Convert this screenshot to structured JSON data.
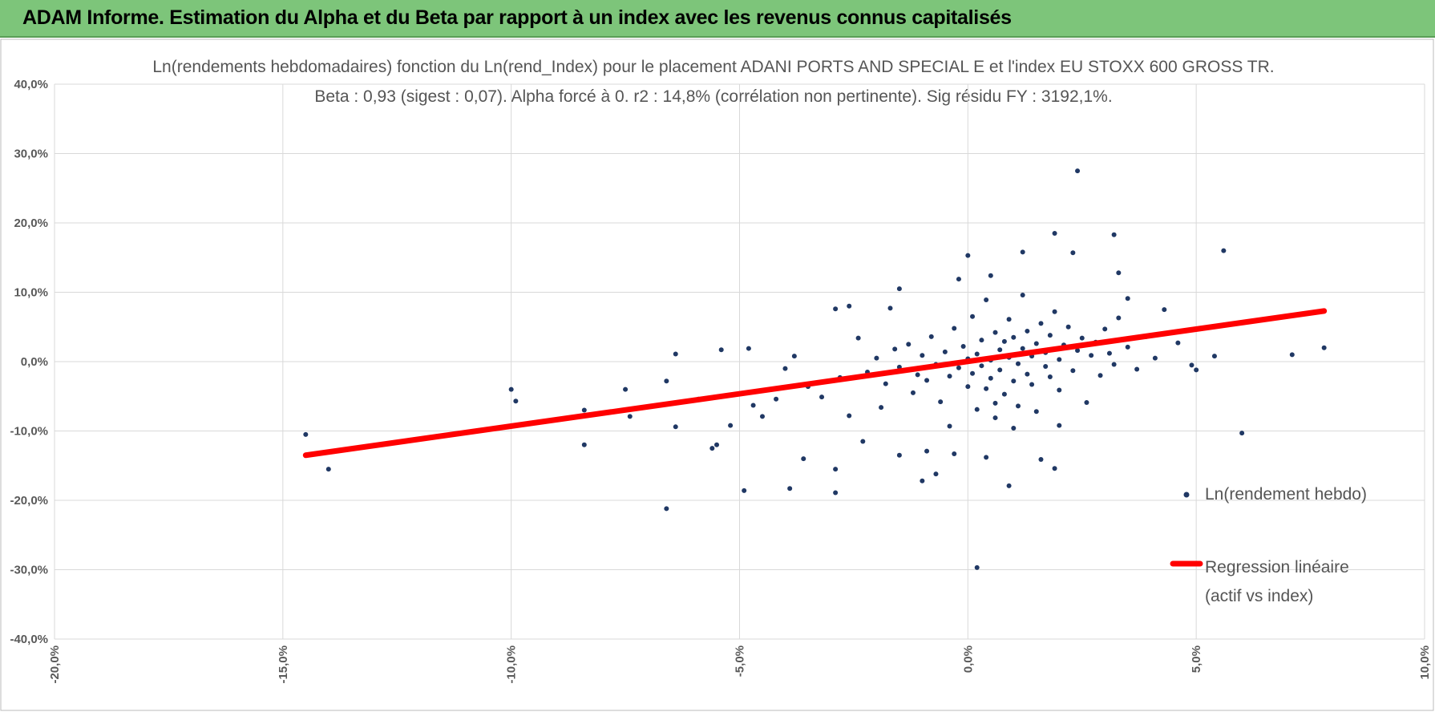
{
  "header": {
    "title": "ADAM Informe. Estimation du Alpha et du Beta par rapport à un index avec les revenus connus capitalisés"
  },
  "chart_data": {
    "type": "scatter",
    "title": "Ln(rendements hebdomadaires) fonction du Ln(rend_Index) pour le placement ADANI PORTS AND SPECIAL E et l'index EU STOXX 600 GROSS TR.",
    "subtitle": "Beta : 0,93 (sigest : 0,07).  Alpha forcé à 0. r2 : 14,8% (corrélation non pertinente). Sig résidu FY : 3192,1%.",
    "xlim": [
      -20,
      10
    ],
    "xticks": [
      {
        "value": -20,
        "label": "-20,0%"
      },
      {
        "value": -15,
        "label": "-15,0%"
      },
      {
        "value": -10,
        "label": "-10,0%"
      },
      {
        "value": -5,
        "label": "-5,0%"
      },
      {
        "value": 0,
        "label": "0,0%"
      },
      {
        "value": 5,
        "label": "5,0%"
      },
      {
        "value": 10,
        "label": "10,0%"
      }
    ],
    "ylim": [
      -40,
      40
    ],
    "yticks": [
      {
        "value": -40,
        "label": "-40,0%"
      },
      {
        "value": -30,
        "label": "-30,0%"
      },
      {
        "value": -20,
        "label": "-20,0%"
      },
      {
        "value": -10,
        "label": "-10,0%"
      },
      {
        "value": 0,
        "label": "0,0%"
      },
      {
        "value": 10,
        "label": "10,0%"
      },
      {
        "value": 20,
        "label": "20,0%"
      },
      {
        "value": 30,
        "label": "30,0%"
      },
      {
        "value": 40,
        "label": "40,0%"
      }
    ],
    "grid": true,
    "series": [
      {
        "name": "Ln(rendement hebdo)",
        "color": "#203864",
        "type": "scatter",
        "x": [
          -14.5,
          -14,
          -10,
          -9.9,
          -8.4,
          -8.4,
          -7.5,
          -7.4,
          -6.6,
          -6.4,
          -6.4,
          -6.6,
          -5.9,
          -5.6,
          -5.5,
          -5.4,
          -5.2,
          -4.9,
          -4.8,
          -4.7,
          -4.5,
          -3.9,
          -3.6,
          -2.9,
          -2.9,
          -2.9,
          -2.6,
          -2.3,
          -1.7,
          -1.5,
          -1.5,
          -1,
          -0.9,
          -0.7,
          -0.3,
          0,
          0.2,
          0.4,
          0.9,
          1.2,
          1.6,
          1.9,
          1.9,
          2.3,
          2.4,
          3.2,
          3.3,
          4.9,
          5,
          5.6,
          5.4,
          6,
          7.1,
          7.8,
          4.3,
          3.5,
          -2.2,
          -2,
          -1.8,
          -1.6,
          -1.5,
          -1.3,
          -1.2,
          -1.1,
          -1,
          -0.9,
          -0.8,
          -0.7,
          -0.6,
          -0.5,
          -0.4,
          -0.3,
          -0.2,
          -0.1,
          0,
          0,
          0.1,
          0.1,
          0.2,
          0.2,
          0.3,
          0.3,
          0.4,
          0.4,
          0.5,
          0.5,
          0.6,
          0.6,
          0.7,
          0.7,
          0.8,
          0.8,
          0.9,
          0.9,
          1,
          1,
          1.1,
          1.1,
          1.2,
          1.2,
          1.3,
          1.3,
          1.4,
          1.4,
          1.5,
          1.5,
          1.6,
          1.7,
          1.7,
          1.8,
          1.8,
          1.9,
          2,
          2,
          2.1,
          2.2,
          2.3,
          2.4,
          2.5,
          2.6,
          2.7,
          2.8,
          2.9,
          3,
          3.1,
          3.2,
          3.3,
          3.5,
          3.7,
          3.9,
          4.1,
          4.4,
          4.6,
          -3.5,
          -3.2,
          -2.8,
          -2.6,
          -2.4,
          -4,
          -4.2,
          -3.8,
          -1.9,
          -0.2,
          0.5,
          2,
          -0.4,
          1,
          0.6
        ],
        "values": [
          -10.5,
          -15.5,
          -4,
          -5.7,
          -7,
          -12,
          -4,
          -7.9,
          -2.8,
          1.1,
          -9.4,
          -21.2,
          -5.4,
          -12.5,
          -12,
          1.7,
          -9.2,
          -18.6,
          1.9,
          -6.3,
          -7.9,
          -18.3,
          -14,
          -18.9,
          -15.5,
          7.6,
          8,
          -11.5,
          7.7,
          10.5,
          -13.5,
          -17.2,
          -12.9,
          -16.2,
          -13.3,
          15.3,
          -29.7,
          -13.8,
          -17.9,
          15.8,
          -14.1,
          18.5,
          -15.4,
          15.7,
          27.5,
          18.3,
          12.8,
          -0.5,
          -1.2,
          16,
          0.8,
          -10.3,
          1,
          2,
          7.5,
          9.1,
          -1.5,
          0.5,
          -3.2,
          1.8,
          -0.8,
          2.5,
          -4.5,
          -1.9,
          0.9,
          -2.7,
          3.6,
          -0.4,
          -5.8,
          1.4,
          -2.1,
          4.8,
          -0.9,
          2.2,
          -3.6,
          0.4,
          6.5,
          -1.7,
          1.1,
          -6.9,
          3.1,
          -0.6,
          -3.9,
          8.9,
          0.2,
          -2.4,
          4.2,
          -8.1,
          1.7,
          -1.2,
          2.9,
          -4.7,
          0.6,
          6.1,
          -2.8,
          3.5,
          -0.3,
          -6.4,
          1.9,
          9.6,
          -1.8,
          4.4,
          0.8,
          -3.3,
          2.6,
          -7.2,
          5.5,
          -0.7,
          1.3,
          3.8,
          -2.2,
          7.2,
          0.3,
          -4.1,
          2.4,
          5,
          -1.3,
          1.6,
          3.4,
          -5.9,
          0.9,
          2.8,
          -2,
          4.7,
          1.2,
          -0.4,
          6.3,
          2.1,
          -1.1,
          3.6,
          0.5,
          4.1,
          2.7,
          -3.6,
          -5.1,
          -2.3,
          -7.8,
          3.4,
          -1,
          -5.4,
          0.8,
          -6.6,
          11.9,
          12.4,
          -9.2,
          -9.3,
          -9.6,
          -6
        ]
      },
      {
        "name": "Regression linéaire (actif vs index)",
        "color": "#ff0000",
        "type": "line",
        "x": [
          -14.5,
          7.8
        ],
        "values": [
          -13.5,
          7.3
        ]
      }
    ]
  }
}
